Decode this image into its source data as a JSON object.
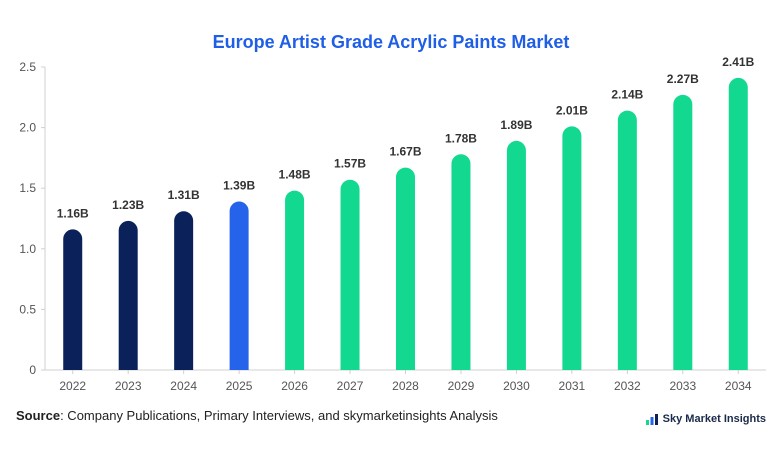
{
  "chart_data": {
    "type": "bar",
    "title": "Europe Artist Grade Acrylic Paints Market",
    "xlabel": "",
    "ylabel": "",
    "categories": [
      "2022",
      "2023",
      "2024",
      "2025",
      "2026",
      "2027",
      "2028",
      "2029",
      "2030",
      "2031",
      "2032",
      "2033",
      "2034"
    ],
    "values": [
      1.16,
      1.23,
      1.31,
      1.39,
      1.48,
      1.57,
      1.67,
      1.78,
      1.89,
      2.01,
      2.14,
      2.27,
      2.41
    ],
    "data_labels": [
      "1.16B",
      "1.23B",
      "1.31B",
      "1.39B",
      "1.48B",
      "1.57B",
      "1.67B",
      "1.78B",
      "1.89B",
      "2.01B",
      "2.14B",
      "2.27B",
      "2.41B"
    ],
    "ylim": [
      0,
      2.5
    ],
    "yticks": [
      0,
      0.5,
      1.0,
      1.5,
      2.0,
      2.5
    ],
    "ytick_labels": [
      "0",
      "0.5",
      "1.0",
      "1.5",
      "2.0",
      "2.5"
    ],
    "grid": false,
    "legend": "none",
    "bar_colors": [
      "#0a2259",
      "#0a2259",
      "#0a2259",
      "#2563eb",
      "#12d98f",
      "#12d98f",
      "#12d98f",
      "#12d98f",
      "#12d98f",
      "#12d98f",
      "#12d98f",
      "#12d98f",
      "#12d98f"
    ]
  },
  "footer": {
    "source_label": "Source",
    "source_text": ": Company Publications, Primary Interviews, and skymarketinsights Analysis"
  },
  "brand": {
    "name": "Sky Market Insights",
    "logo_icon": "sky-market-logo-icon"
  },
  "colors": {
    "title": "#1f5ee6",
    "axis": "#555555"
  }
}
